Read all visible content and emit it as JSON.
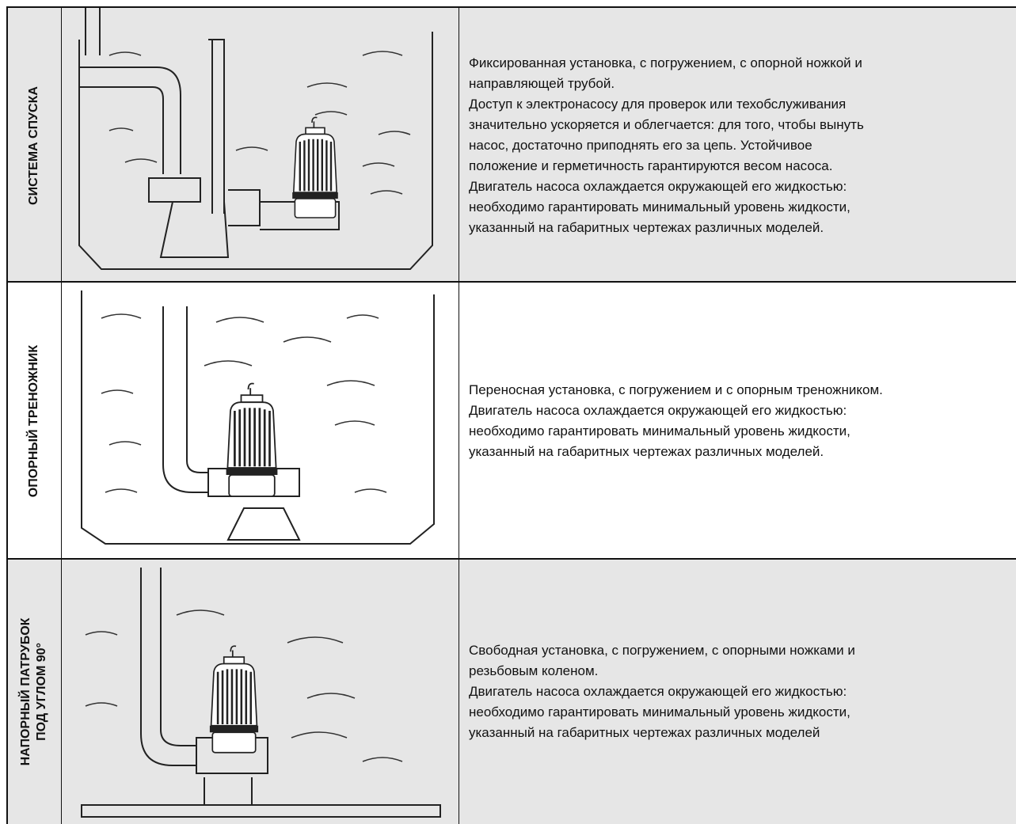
{
  "table": {
    "rows": [
      {
        "label": [
          "СИСТЕМА СПУСКА"
        ],
        "text": [
          "Фиксированная установка, с погружением, с опорной ножкой и",
          "направляющей трубой.",
          "Доступ к электронасосу для проверок или техобслуживания",
          "значительно ускоряется и облегчается: для того, чтобы вынуть",
          "насос, достаточно приподнять его за цепь. Устойчивое",
          "положение и герметичность гарантируются весом насоса.",
          "Двигатель насоса охлаждается окружающей его жидкостью:",
          "необходимо гарантировать минимальный уровень жидкости,",
          "указанный на габаритных чертежах различных моделей."
        ]
      },
      {
        "label": [
          "ОПОРНЫЙ ТРЕНОЖНИК"
        ],
        "text": [
          "Переносная установка, с погружением и с опорным треножником.",
          "Двигатель насоса охлаждается окружающей его жидкостью:",
          "необходимо гарантировать минимальный уровень жидкости,",
          "указанный на габаритных чертежах различных моделей."
        ]
      },
      {
        "label": [
          "НАПОРНЫЙ ПАТРУБОК",
          "ПОД УГЛОМ 90°"
        ],
        "text": [
          "Свободная установка, с погружением, с опорными ножками и",
          "резьбовым коленом.",
          "Двигатель насоса охлаждается окружающей его жидкостью:",
          "необходимо гарантировать минимальный уровень жидкости,",
          "указанный на габаритных чертежах различных моделей"
        ]
      }
    ]
  }
}
